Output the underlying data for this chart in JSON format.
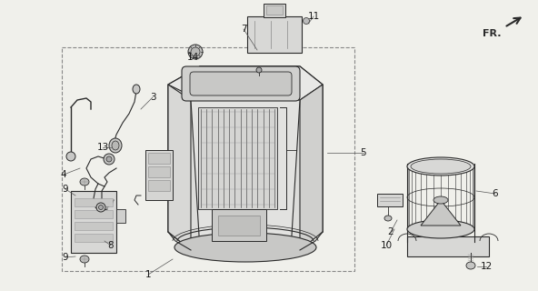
{
  "bg_color": "#f0f0eb",
  "line_color": "#2a2a2a",
  "label_color": "#1a1a1a",
  "font_size": 7.5,
  "fr_text": "FR.",
  "box_color": "#e8e8e4",
  "dark_color": "#555555",
  "mid_color": "#999999",
  "light_color": "#cccccc"
}
